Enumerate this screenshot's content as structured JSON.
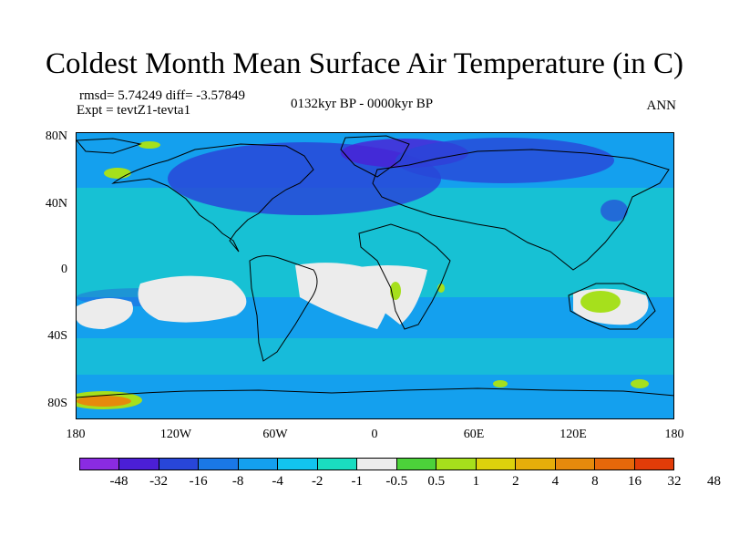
{
  "title": "Coldest Month Mean Surface Air Temperature (in C)",
  "stats": "rmsd= 5.74249 diff= -3.57849",
  "experiment": "Expt = tevtZ1-tevta1",
  "period": "0132kyr BP - 0000kyr BP",
  "season": "ANN",
  "lat_labels": [
    "80N",
    "40N",
    "0",
    "40S",
    "80S"
  ],
  "lon_labels": [
    "180",
    "120W",
    "60W",
    "0",
    "60E",
    "120E",
    "180"
  ],
  "colorbar": {
    "colors": [
      "#8a2be2",
      "#4b1fd6",
      "#2846d8",
      "#1a78e6",
      "#14a0ee",
      "#12c4ee",
      "#1adcc0",
      "#ececec",
      "#4cd23a",
      "#a6e01c",
      "#dcd20c",
      "#e6ae0a",
      "#e68a0c",
      "#e6680a",
      "#e23c08"
    ],
    "labels": [
      "-48",
      "-32",
      "-16",
      "-8",
      "-4",
      "-2",
      "-1",
      "-0.5",
      "0.5",
      "1",
      "2",
      "4",
      "8",
      "16",
      "32",
      "48"
    ]
  },
  "map_colors": {
    "ocean_base": "#14a0ee",
    "neutral": "#ececec",
    "tropical_band": "#1adcc0",
    "cold": "#2846d8",
    "very_cold": "#4b1fd6",
    "warm": "#a6e01c",
    "hot": "#e68a0c",
    "coast": "#000000"
  }
}
